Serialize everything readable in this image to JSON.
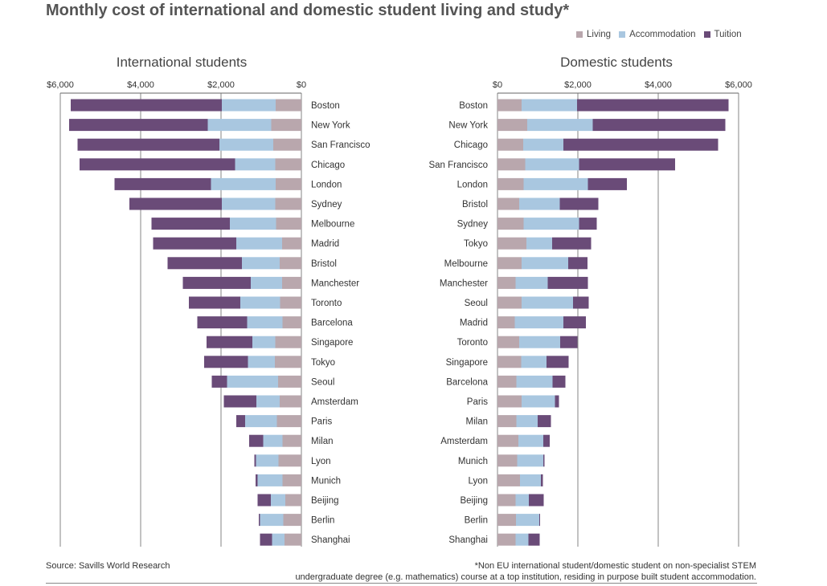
{
  "title": "Monthly cost of international and domestic student living and study*",
  "legend": [
    {
      "label": "Living",
      "color": "#b9a7ad"
    },
    {
      "label": "Accommodation",
      "color": "#a9c7e0"
    },
    {
      "label": "Tuition",
      "color": "#6a4b78"
    }
  ],
  "colors": {
    "living": "#b9a7ad",
    "accommodation": "#a9c7e0",
    "tuition": "#6a4b78"
  },
  "chart_data": [
    {
      "type": "bar",
      "orientation": "horizontal",
      "stacked": true,
      "subtitle": "International students",
      "xlim": [
        0,
        6000
      ],
      "x_ticks": [
        "$6,000",
        "$4,000",
        "$2,000",
        "$0"
      ],
      "x_tick_values": [
        6000,
        4000,
        2000,
        0
      ],
      "reversed": true,
      "grid": true,
      "categories": [
        "Boston",
        "New York",
        "San Francisco",
        "Chicago",
        "London",
        "Sydney",
        "Melbourne",
        "Madrid",
        "Bristol",
        "Manchester",
        "Toronto",
        "Barcelona",
        "Singapore",
        "Tokyo",
        "Seoul",
        "Amsterdam",
        "Paris",
        "Milan",
        "Lyon",
        "Munich",
        "Beijing",
        "Berlin",
        "Shanghai"
      ],
      "series": [
        {
          "name": "Living",
          "values": [
            640,
            750,
            700,
            650,
            640,
            650,
            630,
            480,
            540,
            480,
            530,
            470,
            650,
            660,
            580,
            540,
            610,
            470,
            570,
            470,
            400,
            450,
            420
          ]
        },
        {
          "name": "Accommodation",
          "values": [
            1340,
            1580,
            1340,
            1000,
            1610,
            1330,
            1150,
            1140,
            940,
            780,
            990,
            880,
            570,
            670,
            1270,
            580,
            790,
            480,
            560,
            620,
            360,
            580,
            310
          ]
        },
        {
          "name": "Tuition",
          "values": [
            3760,
            3450,
            3530,
            3870,
            2400,
            2300,
            1950,
            2070,
            1850,
            1690,
            1280,
            1240,
            1140,
            1090,
            380,
            810,
            220,
            350,
            40,
            50,
            330,
            30,
            300
          ]
        }
      ]
    },
    {
      "type": "bar",
      "orientation": "horizontal",
      "stacked": true,
      "subtitle": "Domestic students",
      "xlim": [
        0,
        6000
      ],
      "x_ticks": [
        "$0",
        "$2,000",
        "$4,000",
        "$6,000"
      ],
      "x_tick_values": [
        0,
        2000,
        4000,
        6000
      ],
      "reversed": false,
      "grid": true,
      "categories": [
        "Boston",
        "New York",
        "Chicago",
        "San Francisco",
        "London",
        "Bristol",
        "Sydney",
        "Tokyo",
        "Melbourne",
        "Manchester",
        "Seoul",
        "Madrid",
        "Toronto",
        "Singapore",
        "Barcelona",
        "Paris",
        "Milan",
        "Amsterdam",
        "Munich",
        "Lyon",
        "Beijing",
        "Berlin",
        "Shanghai"
      ],
      "series": [
        {
          "name": "Living",
          "values": [
            600,
            740,
            640,
            690,
            650,
            540,
            650,
            720,
            600,
            450,
            600,
            430,
            540,
            590,
            470,
            600,
            470,
            520,
            490,
            560,
            450,
            460,
            450
          ]
        },
        {
          "name": "Accommodation",
          "values": [
            1380,
            1630,
            1000,
            1340,
            1600,
            1010,
            1380,
            640,
            1160,
            800,
            1280,
            1210,
            1020,
            630,
            900,
            830,
            530,
            620,
            650,
            520,
            330,
            580,
            320
          ]
        },
        {
          "name": "Tuition",
          "values": [
            3770,
            3300,
            3850,
            2390,
            970,
            960,
            440,
            970,
            480,
            1000,
            390,
            560,
            430,
            550,
            320,
            100,
            330,
            160,
            30,
            50,
            370,
            20,
            280
          ]
        }
      ]
    }
  ],
  "source": "Source: Savills World Research",
  "footnote_line1": "*Non EU international student/domestic student on non-specialist STEM",
  "footnote_line2": "undergraduate degree (e.g. mathematics) course at a top institution, residing in purpose built student accommodation."
}
